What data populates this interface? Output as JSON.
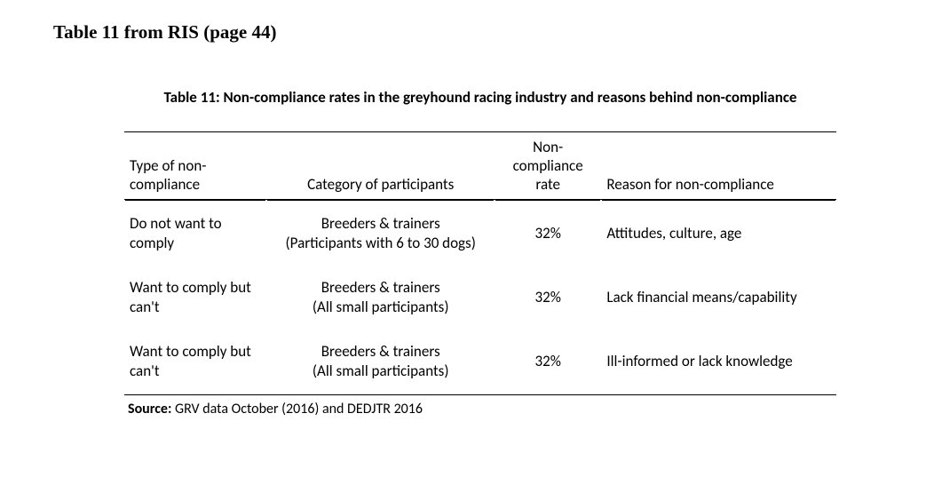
{
  "doc_heading": "Table 11 from RIS (page 44)",
  "caption": "Table 11: Non-compliance rates in the greyhound racing industry and reasons behind non-compliance",
  "columns": {
    "c1": "Type of non-compliance",
    "c2": "Category of participants",
    "c3": "Non-compliance rate",
    "c4": "Reason for non-compliance"
  },
  "rows": [
    {
      "type": "Do not want to comply",
      "category_line1": "Breeders & trainers",
      "category_line2": "(Participants with 6 to 30 dogs)",
      "rate": "32%",
      "reason": "Attitudes, culture, age"
    },
    {
      "type": "Want to comply but can't",
      "category_line1": "Breeders & trainers",
      "category_line2": "(All small participants)",
      "rate": "32%",
      "reason": "Lack financial means/capability"
    },
    {
      "type": "Want to comply but can't",
      "category_line1": "Breeders & trainers",
      "category_line2": "(All small participants)",
      "rate": "32%",
      "reason": "Ill-informed or lack knowledge"
    }
  ],
  "source_label": "Source:",
  "source_text": " GRV data October (2016) and DEDJTR 2016",
  "style": {
    "page_bg": "#ffffff",
    "text_color": "#000000",
    "rule_color": "#000000",
    "heading_font": "Times New Roman",
    "body_font": "Calibri",
    "heading_fontsize_pt": 16,
    "caption_fontsize_pt": 13,
    "body_fontsize_pt": 13,
    "col_widths_pct": [
      20,
      32,
      15,
      33
    ],
    "header_rule": "top-single-bottom-double",
    "last_row_rule": "single"
  }
}
